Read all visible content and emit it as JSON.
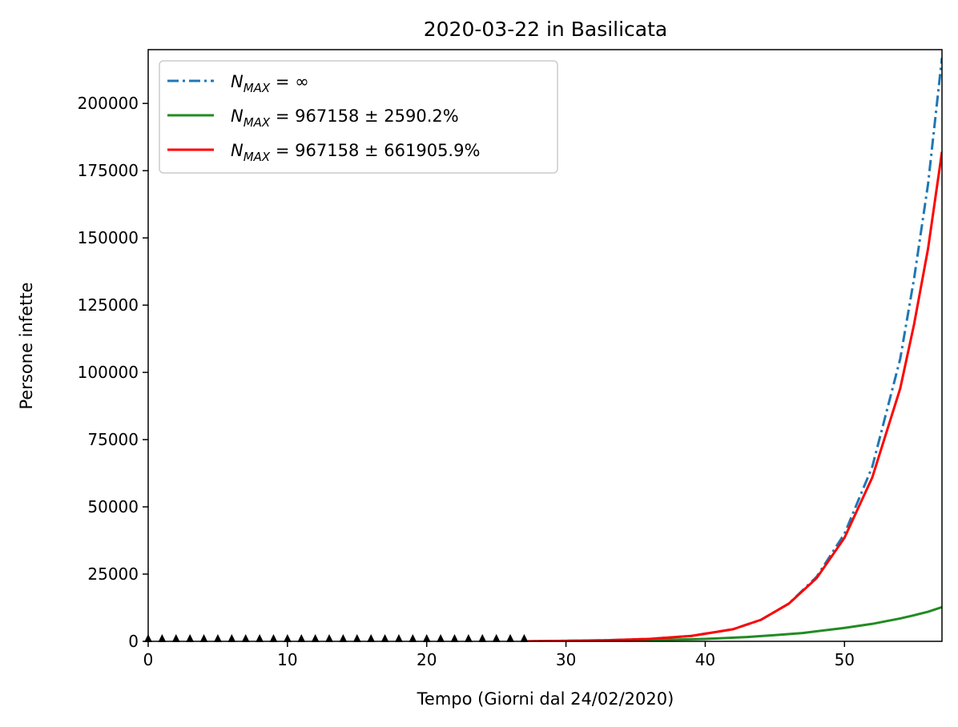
{
  "chart_data": {
    "type": "line",
    "title": "2020-03-22 in Basilicata",
    "xlabel": "Tempo (Giorni dal 24/02/2020)",
    "ylabel": "Persone infette",
    "xlim": [
      0,
      57
    ],
    "ylim": [
      0,
      220000
    ],
    "xticks": [
      0,
      10,
      20,
      30,
      40,
      50
    ],
    "yticks": [
      0,
      25000,
      50000,
      75000,
      100000,
      125000,
      150000,
      175000,
      200000
    ],
    "grid": false,
    "legend_position": "top-left",
    "series": [
      {
        "name": "N_MAX = ∞",
        "legend": {
          "symbol": "N",
          "sub": "MAX",
          "rest": " = ∞"
        },
        "style": "dashdot",
        "color": "#1f77b4",
        "x": [
          27,
          30,
          33,
          36,
          39,
          42,
          44,
          46,
          48,
          50,
          52,
          54,
          55,
          56,
          57
        ],
        "y": [
          0,
          200,
          400,
          900,
          2000,
          4500,
          8000,
          14000,
          24000,
          40000,
          65000,
          105000,
          135000,
          170000,
          217000
        ]
      },
      {
        "name": "N_MAX = 967158 ± 2590.2%",
        "legend": {
          "symbol": "N",
          "sub": "MAX",
          "rest": " = 967158 ± 2590.2%"
        },
        "style": "solid",
        "color": "#228b22",
        "x": [
          27,
          30,
          35,
          40,
          43,
          45,
          47,
          50,
          52,
          54,
          55,
          56,
          57
        ],
        "y": [
          0,
          100,
          300,
          900,
          1600,
          2300,
          3100,
          5000,
          6500,
          8500,
          9700,
          11000,
          12700
        ]
      },
      {
        "name": "N_MAX = 967158 ± 661905.9%",
        "legend": {
          "symbol": "N",
          "sub": "MAX",
          "rest": " = 967158 ± 661905.9%"
        },
        "style": "solid",
        "color": "#ff0000",
        "x": [
          27,
          30,
          33,
          36,
          39,
          42,
          44,
          46,
          48,
          50,
          52,
          54,
          55,
          56,
          57
        ],
        "y": [
          0,
          200,
          400,
          900,
          2000,
          4500,
          8000,
          14000,
          23500,
          38500,
          61000,
          94000,
          118000,
          146000,
          182000
        ]
      },
      {
        "name": "",
        "style": "markers",
        "marker": "triangle-up",
        "color": "#000000",
        "x": [
          0,
          1,
          2,
          3,
          4,
          5,
          6,
          7,
          8,
          9,
          10,
          11,
          12,
          13,
          14,
          15,
          16,
          17,
          18,
          19,
          20,
          21,
          22,
          23,
          24,
          25,
          26,
          27
        ],
        "y": [
          0,
          0,
          0,
          0,
          0,
          0,
          0,
          0,
          0,
          0,
          0,
          0,
          0,
          0,
          0,
          0,
          1,
          1,
          3,
          5,
          8,
          10,
          12,
          15,
          20,
          25,
          30,
          35
        ]
      }
    ]
  }
}
